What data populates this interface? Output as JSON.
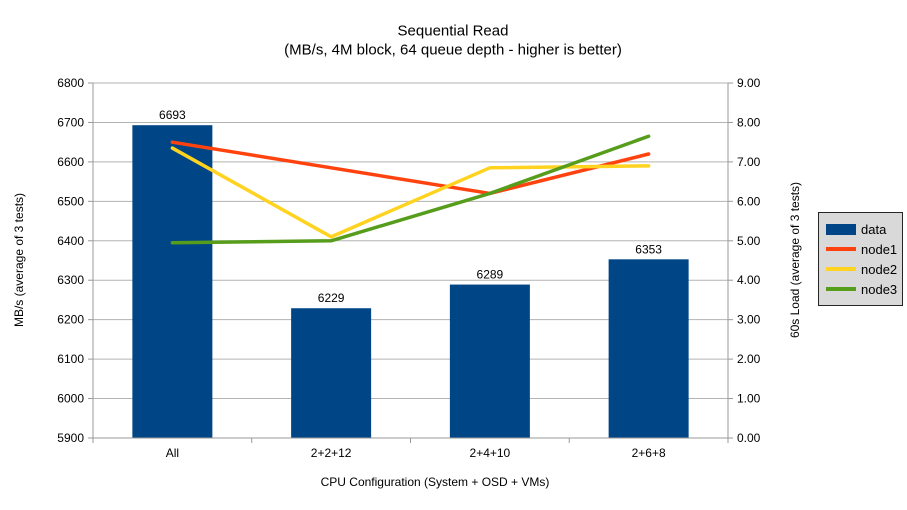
{
  "chart_data": {
    "type": "combo-bar-line",
    "title": "Sequential Read",
    "subtitle": "(MB/s, 4M block, 64 queue depth - higher is better)",
    "categories": [
      "All",
      "2+2+12",
      "2+4+10",
      "2+6+8"
    ],
    "xlabel": "CPU Configuration (System + OSD + VMs)",
    "left_axis": {
      "label": "MB/s (average of 3 tests)",
      "min": 5900,
      "max": 6800,
      "step": 100
    },
    "right_axis": {
      "label": "60s Load (average of 3 tests)",
      "min": 0,
      "max": 9,
      "step": 1,
      "decimals": 2
    },
    "bar_series": {
      "name": "data",
      "color": "#004586",
      "axis": "left",
      "values": [
        6693,
        6229,
        6289,
        6353
      ]
    },
    "line_series": [
      {
        "name": "node1",
        "color": "#ff420e",
        "axis": "right",
        "values": [
          7.5,
          6.85,
          6.2,
          7.2
        ]
      },
      {
        "name": "node2",
        "color": "#ffd320",
        "axis": "right",
        "values": [
          7.35,
          5.1,
          6.85,
          6.9
        ]
      },
      {
        "name": "node3",
        "color": "#579d1c",
        "axis": "right",
        "values": [
          4.95,
          5.0,
          6.2,
          7.65
        ]
      }
    ],
    "legend_position": "right",
    "grid": "horizontal",
    "colors": {
      "grid": "#b3b3b3",
      "axis": "#999999",
      "text": "#000000",
      "legend_bg": "#d9d9d9",
      "legend_border": "#262626",
      "background": "#ffffff"
    }
  }
}
